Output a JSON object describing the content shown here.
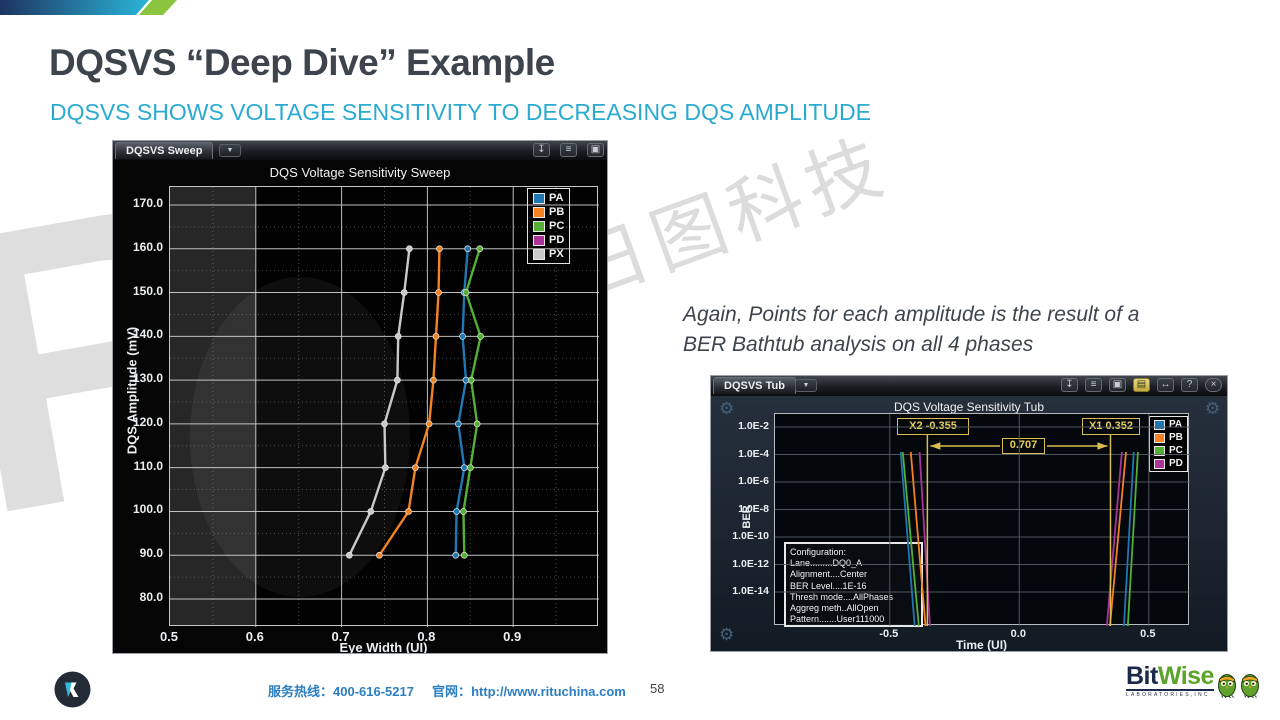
{
  "slide": {
    "title": "DQSVS “Deep Dive” Example",
    "subtitle": "DQSVS SHOWS VOLTAGE SENSITIVITY TO DECREASING DQS AMPLITUDE",
    "note": {
      "line1": "Again, Points for each amplitude is the result of a",
      "line2": "BER Bathtub analysis on all 4 phases"
    },
    "page_number": "58",
    "watermark_text": "日图科技",
    "watermark_letter": "R",
    "accent_colors": {
      "header_bar_start": "#1d3461",
      "header_bar_end": "#2bb6d9",
      "header_green": "#8bc53f",
      "subtitle_cyan": "#2aaad2",
      "footer_blue": "#2b7fc2"
    }
  },
  "footer": {
    "hotline_label": "服务热线：",
    "hotline_number": "400-616-5217",
    "website_label": "官网：",
    "website_url": "http://www.rituchina.com",
    "bitwise": {
      "bit": "Bit",
      "wise": "Wise",
      "subtext": "LABORATORIES,INC"
    }
  },
  "sweep_window": {
    "tab_label": "DQSVS Sweep",
    "toolbar_icons": [
      "download-icon",
      "layers-icon",
      "image-icon",
      "print-icon"
    ],
    "chart_data": {
      "type": "line",
      "title": "DQS Voltage Sensitivity Sweep",
      "xlabel": "Eye Width (UI)",
      "ylabel": "DQS Amplitude (mV)",
      "xlim": [
        0.5,
        1.0
      ],
      "xticks": [
        0.5,
        0.6,
        0.7,
        0.8,
        0.9
      ],
      "ylim": [
        73,
        174
      ],
      "yticks": [
        170,
        160,
        150,
        140,
        130,
        120,
        110,
        100,
        90,
        80
      ],
      "grid": true,
      "legend_position": "top-right",
      "legend_order": [
        "PA",
        "PB",
        "PC",
        "PD",
        "PX"
      ],
      "amplitudes_mV": [
        160,
        150,
        140,
        130,
        120,
        110,
        100,
        90
      ],
      "series": [
        {
          "name": "PX",
          "color": "#c9c9c9",
          "visible": true,
          "eye_width_ui": [
            0.779,
            0.773,
            0.766,
            0.765,
            0.75,
            0.751,
            0.734,
            0.709
          ]
        },
        {
          "name": "PB",
          "color": "#f58220",
          "visible": true,
          "eye_width_ui": [
            0.814,
            0.813,
            0.81,
            0.807,
            0.802,
            0.786,
            0.778,
            0.744
          ]
        },
        {
          "name": "PD",
          "color": "#a93399",
          "visible": false,
          "eye_width_ui": [
            0.847,
            0.843,
            0.841,
            0.845,
            0.836,
            0.843,
            0.834,
            0.833
          ]
        },
        {
          "name": "PA",
          "color": "#1f77b4",
          "visible": true,
          "eye_width_ui": [
            0.847,
            0.843,
            0.841,
            0.845,
            0.836,
            0.843,
            0.834,
            0.833
          ]
        },
        {
          "name": "PC",
          "color": "#54b033",
          "visible": true,
          "eye_width_ui": [
            0.861,
            0.845,
            0.862,
            0.851,
            0.858,
            0.85,
            0.842,
            0.843
          ]
        }
      ]
    }
  },
  "tub_window": {
    "tab_label": "DQSVS Tub",
    "toolbar_icons": [
      "download-icon",
      "layers-icon",
      "image-icon",
      "folder-icon",
      "resize-icon",
      "help-icon",
      "close-icon"
    ],
    "chart_data": {
      "type": "line",
      "title": "DQS Voltage Sensitivity Tub",
      "xlabel": "Time (UI)",
      "ylabel": "BER",
      "xticks": [
        -0.5,
        0.0,
        0.5
      ],
      "xlim": [
        -0.94,
        0.66
      ],
      "ytick_labels": [
        "1.0E-2",
        "1.0E-4",
        "1.0E-6",
        "1.0E-8",
        "1.0E-10",
        "1.0E-12",
        "1.0E-14"
      ],
      "grid": true,
      "legend_order": [
        "PA",
        "PB",
        "PC",
        "PD"
      ],
      "series": [
        {
          "name": "PA",
          "color": "#1f77b4",
          "left_edge_ui": {
            "at_ber_1e4": -0.458,
            "at_ber_1e16": -0.404
          },
          "right_edge_ui": {
            "at_ber_1e4": 0.442,
            "at_ber_1e16": 0.404
          }
        },
        {
          "name": "PB",
          "color": "#f58220",
          "left_edge_ui": {
            "at_ber_1e4": -0.419,
            "at_ber_1e16": -0.362
          },
          "right_edge_ui": {
            "at_ber_1e4": 0.412,
            "at_ber_1e16": 0.35
          }
        },
        {
          "name": "PC",
          "color": "#54b033",
          "left_edge_ui": {
            "at_ber_1e4": -0.45,
            "at_ber_1e16": -0.388
          },
          "right_edge_ui": {
            "at_ber_1e4": 0.458,
            "at_ber_1e16": 0.419
          }
        },
        {
          "name": "PD",
          "color": "#a93399",
          "left_edge_ui": {
            "at_ber_1e4": -0.385,
            "at_ber_1e16": -0.345
          },
          "right_edge_ui": {
            "at_ber_1e4": 0.396,
            "at_ber_1e16": 0.338
          }
        }
      ]
    },
    "markers": {
      "x2_label": "X2  -0.355",
      "x1_label": "X1  0.352",
      "x2_value": -0.355,
      "x1_value": 0.352,
      "delta_label": "0.707",
      "color": "#d9bd4e"
    },
    "config_box_lines": [
      "Configuration:",
      "Lane.........DQ0_A",
      "Alignment....Center",
      "BER Level....1E-16",
      "Thresh mode....AllPhases",
      "Aggreg meth..AllOpen",
      "Pattern.......User111000"
    ]
  }
}
